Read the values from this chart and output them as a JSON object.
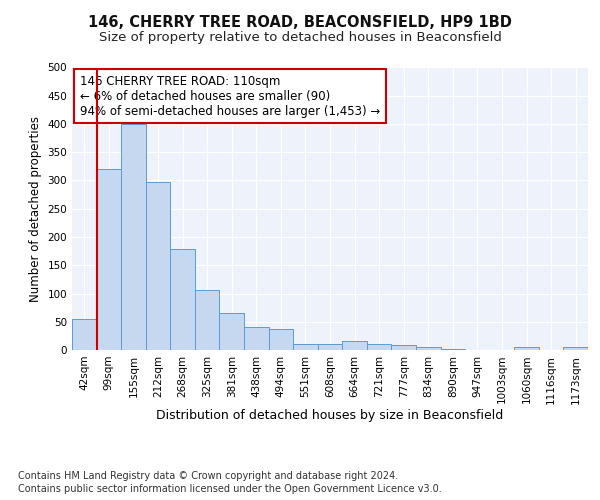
{
  "title1": "146, CHERRY TREE ROAD, BEACONSFIELD, HP9 1BD",
  "title2": "Size of property relative to detached houses in Beaconsfield",
  "xlabel": "Distribution of detached houses by size in Beaconsfield",
  "ylabel": "Number of detached properties",
  "categories": [
    "42sqm",
    "99sqm",
    "155sqm",
    "212sqm",
    "268sqm",
    "325sqm",
    "381sqm",
    "438sqm",
    "494sqm",
    "551sqm",
    "608sqm",
    "664sqm",
    "721sqm",
    "777sqm",
    "834sqm",
    "890sqm",
    "947sqm",
    "1003sqm",
    "1060sqm",
    "1116sqm",
    "1173sqm"
  ],
  "values": [
    54,
    320,
    400,
    297,
    178,
    107,
    65,
    40,
    37,
    11,
    11,
    16,
    10,
    8,
    5,
    2,
    0,
    0,
    6,
    0,
    6
  ],
  "bar_color": "#c5d8f0",
  "bar_edge_color": "#5b9bd5",
  "vline_color": "#cc0000",
  "annotation_text": "146 CHERRY TREE ROAD: 110sqm\n← 6% of detached houses are smaller (90)\n94% of semi-detached houses are larger (1,453) →",
  "annotation_box_color": "#ffffff",
  "annotation_box_edge": "#cc0000",
  "footer1": "Contains HM Land Registry data © Crown copyright and database right 2024.",
  "footer2": "Contains public sector information licensed under the Open Government Licence v3.0.",
  "ylim": [
    0,
    500
  ],
  "yticks": [
    0,
    50,
    100,
    150,
    200,
    250,
    300,
    350,
    400,
    450,
    500
  ],
  "bg_color": "#edf2fb",
  "grid_color": "#ffffff",
  "title1_fontsize": 10.5,
  "title2_fontsize": 9.5,
  "xlabel_fontsize": 9,
  "ylabel_fontsize": 8.5,
  "tick_fontsize": 7.5,
  "annotation_fontsize": 8.5,
  "footer_fontsize": 7
}
